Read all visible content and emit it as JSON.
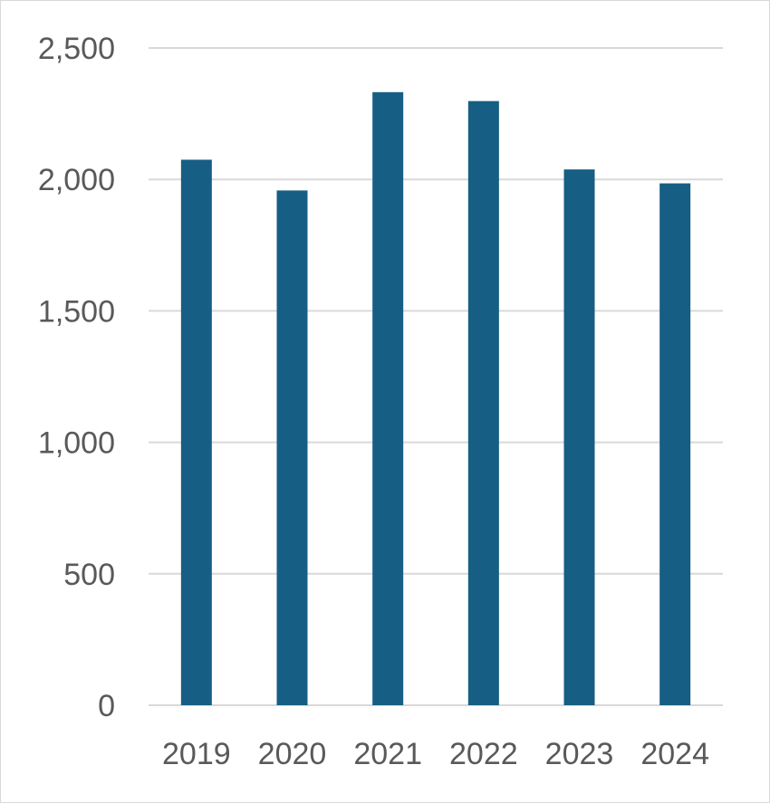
{
  "chart_data": {
    "type": "bar",
    "title": "",
    "xlabel": "",
    "ylabel": "",
    "categories": [
      "2019",
      "2020",
      "2021",
      "2022",
      "2023",
      "2024"
    ],
    "values": [
      2075,
      1958,
      2332,
      2298,
      2038,
      1985
    ],
    "ylim": [
      0,
      2500
    ],
    "yticks": [
      0,
      500,
      1000,
      1500,
      2000,
      2500
    ],
    "ytick_labels": [
      "0",
      "500",
      "1,000",
      "1,500",
      "2,000",
      "2,500"
    ],
    "grid": true,
    "legend": "none",
    "bar_color": "#165e83",
    "grid_color": "#d9d9d9",
    "label_color": "#595959"
  }
}
